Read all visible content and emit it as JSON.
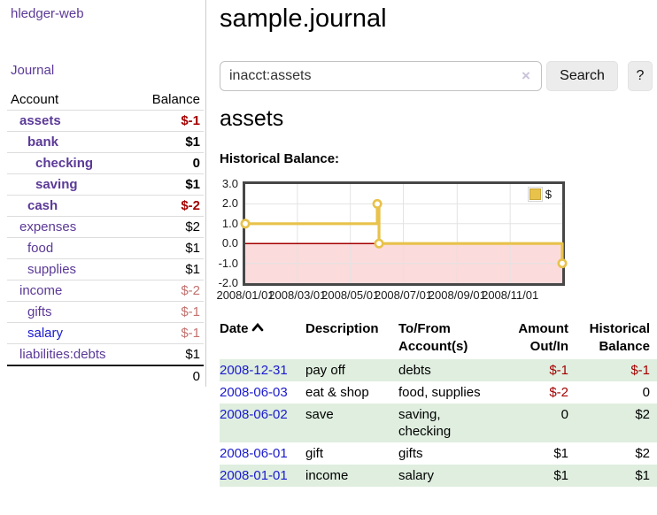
{
  "colors": {
    "purple": "#5b3997",
    "blue_link": "#1a1ace",
    "neg_strong": "#a40000",
    "neg_soft": "#c2726e",
    "row_green": "#dfeedf",
    "series_yellow": "#e8c24a",
    "pink_region": "#fbdbdb",
    "zero_line": "#a40000",
    "gridline": "#e3e3e3"
  },
  "brand": {
    "title": "hledger-web"
  },
  "nav": {
    "journal": "Journal"
  },
  "sidebar": {
    "col_account": "Account",
    "col_balance": "Balance",
    "accounts": [
      {
        "name": "assets",
        "balance": "$-1",
        "depth": 0,
        "bold": true,
        "neg": "strong",
        "link": "purple"
      },
      {
        "name": "bank",
        "balance": "$1",
        "depth": 1,
        "bold": true,
        "neg": "none",
        "link": "purple"
      },
      {
        "name": "checking",
        "balance": "0",
        "depth": 2,
        "bold": true,
        "neg": "none",
        "link": "purple"
      },
      {
        "name": "saving",
        "balance": "$1",
        "depth": 2,
        "bold": true,
        "neg": "none",
        "link": "purple"
      },
      {
        "name": "cash",
        "balance": "$-2",
        "depth": 1,
        "bold": true,
        "neg": "strong",
        "link": "purple"
      },
      {
        "name": "expenses",
        "balance": "$2",
        "depth": 0,
        "bold": false,
        "neg": "none",
        "link": "purple"
      },
      {
        "name": "food",
        "balance": "$1",
        "depth": 1,
        "bold": false,
        "neg": "none",
        "link": "purple"
      },
      {
        "name": "supplies",
        "balance": "$1",
        "depth": 1,
        "bold": false,
        "neg": "none",
        "link": "purple"
      },
      {
        "name": "income",
        "balance": "$-2",
        "depth": 0,
        "bold": false,
        "neg": "soft",
        "link": "purple"
      },
      {
        "name": "gifts",
        "balance": "$-1",
        "depth": 1,
        "bold": false,
        "neg": "soft",
        "link": "purple"
      },
      {
        "name": "salary",
        "balance": "$-1",
        "depth": 1,
        "bold": false,
        "neg": "soft",
        "link": "blue"
      },
      {
        "name": "liabilities:debts",
        "balance": "$1",
        "depth": 0,
        "bold": false,
        "neg": "none",
        "link": "purple"
      }
    ],
    "total": "0"
  },
  "main": {
    "title": "sample.journal",
    "search": {
      "value": "inacct:assets",
      "clear": "×",
      "submit": "Search",
      "help": "?"
    },
    "account_heading": "assets",
    "chart_title": "Historical Balance:"
  },
  "chart_data": {
    "type": "line",
    "step": true,
    "title": "Historical Balance",
    "series": [
      {
        "name": "$",
        "points": [
          [
            "2008-01-01",
            1
          ],
          [
            "2008-06-01",
            2
          ],
          [
            "2008-06-03",
            0
          ],
          [
            "2008-12-31",
            -1
          ]
        ]
      }
    ],
    "x_ticks": [
      "2008/01/01",
      "2008/03/01",
      "2008/05/01",
      "2008/07/01",
      "2008/09/01",
      "2008/11/01"
    ],
    "y_ticks": [
      "3.0",
      "2.0",
      "1.0",
      "0.0",
      "-1.0",
      "-2.0"
    ],
    "ylim": [
      -2,
      3
    ],
    "xlim": [
      "2008-01-01",
      "2008-12-31"
    ],
    "grid": true,
    "negative_region": true,
    "legend": {
      "label": "$",
      "position": "top-right"
    }
  },
  "register": {
    "headers": {
      "date": "Date",
      "description": "Description",
      "accounts": "To/From\nAccount(s)",
      "amount": "Amount\nOut/In",
      "balance": "Historical\nBalance"
    },
    "rows": [
      {
        "date": "2008-12-31",
        "description": "pay off",
        "accounts": "debts",
        "amount": "$-1",
        "balance": "$-1"
      },
      {
        "date": "2008-06-03",
        "description": "eat & shop",
        "accounts": "food, supplies",
        "amount": "$-2",
        "balance": "0"
      },
      {
        "date": "2008-06-02",
        "description": "save",
        "accounts": "saving, checking",
        "amount": "0",
        "balance": "$2"
      },
      {
        "date": "2008-06-01",
        "description": "gift",
        "accounts": "gifts",
        "amount": "$1",
        "balance": "$2"
      },
      {
        "date": "2008-01-01",
        "description": "income",
        "accounts": "salary",
        "amount": "$1",
        "balance": "$1"
      }
    ]
  }
}
